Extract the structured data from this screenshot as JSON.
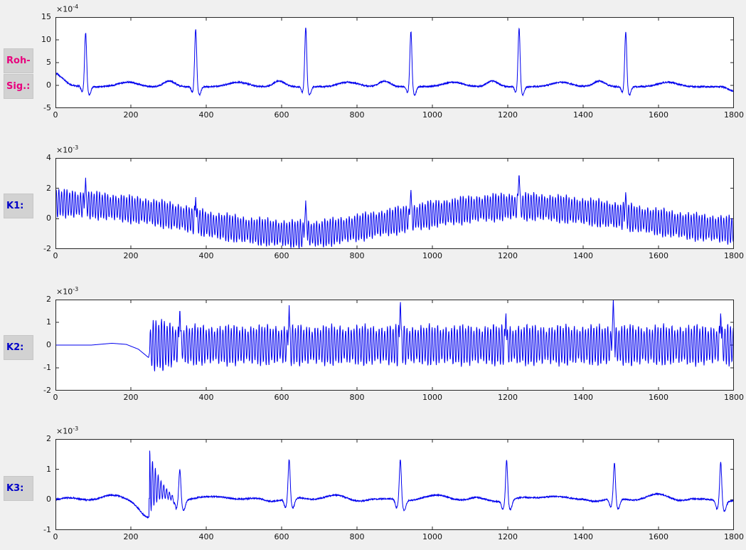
{
  "figure": {
    "background": "#F0F0F0",
    "axes_background": "#FFFFFF",
    "frame_color": "#262626",
    "tick_color": "#262626",
    "tick_label_color": "#111111",
    "label_box_bg": "#D2D2D2"
  },
  "chart_data": [
    {
      "id": "roh-sig",
      "type": "line",
      "row_label": {
        "lines": [
          "Roh-",
          "Sig.:"
        ],
        "color": "#E8007D"
      },
      "line_color": "#0000EE",
      "xlim": [
        0,
        1800
      ],
      "ylim": [
        -5,
        15
      ],
      "xticks": [
        0,
        200,
        400,
        600,
        800,
        1000,
        1200,
        1400,
        1600,
        1800
      ],
      "yticks": [
        15,
        10,
        5,
        0,
        -5
      ],
      "y_scale_label": {
        "prefix": "×10",
        "exponent": "-4"
      },
      "grid": false,
      "signal": {
        "kind": "ecg",
        "units": "1e-4",
        "baseline": -0.3,
        "noise": 0.16,
        "start_decay": {
          "from": 1.7,
          "tau": 22
        },
        "end_dip": {
          "x_start": 1768,
          "to": -1.3,
          "x_end": 1800
        },
        "r_sigma": 2.6,
        "p": {
          "amp": 1.25,
          "at": -70,
          "sigma": 15
        },
        "q": {
          "amp": 1.2,
          "at": -9,
          "sigma": 3
        },
        "s": {
          "amp": 1.8,
          "at": 10,
          "sigma": 4
        },
        "t": {
          "amp": 1.0,
          "at": 112,
          "sigma": 26
        },
        "beats": [
          {
            "x": 80,
            "r": 11.6
          },
          {
            "x": 372,
            "r": 12.4
          },
          {
            "x": 664,
            "r": 12.7
          },
          {
            "x": 943,
            "r": 11.9
          },
          {
            "x": 1230,
            "r": 12.6
          },
          {
            "x": 1513,
            "r": 11.7
          }
        ]
      }
    },
    {
      "id": "k1",
      "type": "line",
      "row_label": {
        "lines": [
          "K1:"
        ],
        "color": "#0000C8"
      },
      "line_color": "#0000EE",
      "xlim": [
        0,
        1800
      ],
      "ylim": [
        -2,
        4
      ],
      "xticks": [
        0,
        200,
        400,
        600,
        800,
        1000,
        1200,
        1400,
        1600,
        1800
      ],
      "yticks": [
        4,
        2,
        0,
        -2
      ],
      "y_scale_label": {
        "prefix": "×10",
        "exponent": "-3"
      },
      "grid": false,
      "signal": {
        "kind": "osc",
        "units": "1e-3",
        "drift": [
          [
            0,
            1.05
          ],
          [
            120,
            0.85
          ],
          [
            240,
            0.5
          ],
          [
            330,
            0.1
          ],
          [
            420,
            -0.45
          ],
          [
            520,
            -0.8
          ],
          [
            620,
            -1.0
          ],
          [
            700,
            -1.0
          ],
          [
            800,
            -0.6
          ],
          [
            900,
            -0.15
          ],
          [
            1000,
            0.3
          ],
          [
            1100,
            0.62
          ],
          [
            1200,
            0.8
          ],
          [
            1280,
            0.78
          ],
          [
            1380,
            0.55
          ],
          [
            1480,
            0.25
          ],
          [
            1580,
            -0.15
          ],
          [
            1680,
            -0.5
          ],
          [
            1800,
            -0.75
          ]
        ],
        "osc": {
          "amp": 0.98,
          "period": 7.2,
          "start": 0
        },
        "spike_slope": 0.55,
        "spikes": [
          {
            "x": 80,
            "peak": 2.7
          },
          {
            "x": 372,
            "peak": 1.42
          },
          {
            "x": 664,
            "peak": 1.2
          },
          {
            "x": 943,
            "peak": 2.0
          },
          {
            "x": 1230,
            "peak": 3.05
          },
          {
            "x": 1513,
            "peak": 1.85
          }
        ]
      }
    },
    {
      "id": "k2",
      "type": "line",
      "row_label": {
        "lines": [
          "K2:"
        ],
        "color": "#0000C8"
      },
      "line_color": "#0000EE",
      "xlim": [
        0,
        1800
      ],
      "ylim": [
        -2,
        2
      ],
      "xticks": [
        0,
        200,
        400,
        600,
        800,
        1000,
        1200,
        1400,
        1600,
        1800
      ],
      "yticks": [
        2,
        1,
        0,
        -1,
        -2
      ],
      "y_scale_label": {
        "prefix": "×10",
        "exponent": "-3"
      },
      "grid": false,
      "signal": {
        "kind": "osc",
        "units": "1e-3",
        "drift": [
          [
            0,
            0
          ],
          [
            95,
            0
          ],
          [
            150,
            0.08
          ],
          [
            188,
            0.03
          ],
          [
            220,
            -0.18
          ],
          [
            247,
            -0.55
          ],
          [
            251,
            -0.2
          ],
          [
            256,
            0
          ],
          [
            1800,
            0
          ]
        ],
        "osc": {
          "amp": 0.93,
          "period": 7.4,
          "start": 250,
          "onset": {
            "until": 330,
            "factor": 1.4
          }
        },
        "spike_slope": 0.55,
        "spikes": [
          {
            "x": 330,
            "peak": 1.7
          },
          {
            "x": 620,
            "peak": 1.75
          },
          {
            "x": 915,
            "peak": 2.0
          },
          {
            "x": 1195,
            "peak": 1.5
          },
          {
            "x": 1480,
            "peak": 2.1
          },
          {
            "x": 1765,
            "peak": 1.5
          }
        ]
      }
    },
    {
      "id": "k3",
      "type": "line",
      "row_label": {
        "lines": [
          "K3:"
        ],
        "color": "#0000C8"
      },
      "line_color": "#0000EE",
      "xlim": [
        0,
        1800
      ],
      "ylim": [
        -1,
        2
      ],
      "xticks": [
        0,
        200,
        400,
        600,
        800,
        1000,
        1200,
        1400,
        1600,
        1800
      ],
      "yticks": [
        2,
        1,
        0,
        -1
      ],
      "y_scale_label": {
        "prefix": "×10",
        "exponent": "-3"
      },
      "grid": false,
      "signal": {
        "kind": "ecg",
        "units": "1e-3",
        "baseline": 0,
        "noise": 0.022,
        "undulation": [
          0.045,
          0.052,
          0.03,
          0.021
        ],
        "intro_bump": {
          "x": 158,
          "amp": 0.11,
          "sigma": 32
        },
        "intro_dip": {
          "x": 248,
          "amp": -0.62,
          "sigma": 21
        },
        "ring": {
          "x0": 250,
          "x1": 320,
          "amp0": 1.05,
          "amp1": 0.06,
          "period": 7.5,
          "offset0": 0.5
        },
        "r_sigma": 2.6,
        "p": {
          "amp": 0.06,
          "at": -80,
          "sigma": 16
        },
        "q": {
          "amp": 0.27,
          "at": -10,
          "sigma": 3.5
        },
        "s": {
          "amp": 0.33,
          "at": 10,
          "sigma": 4.5
        },
        "t": {
          "amp": 0.12,
          "at": 115,
          "sigma": 28
        },
        "beats": [
          {
            "x": 330,
            "r": 1.05
          },
          {
            "x": 620,
            "r": 1.3
          },
          {
            "x": 915,
            "r": 1.35
          },
          {
            "x": 1197,
            "r": 1.35
          },
          {
            "x": 1483,
            "r": 1.2
          },
          {
            "x": 1765,
            "r": 1.3
          }
        ]
      }
    }
  ]
}
